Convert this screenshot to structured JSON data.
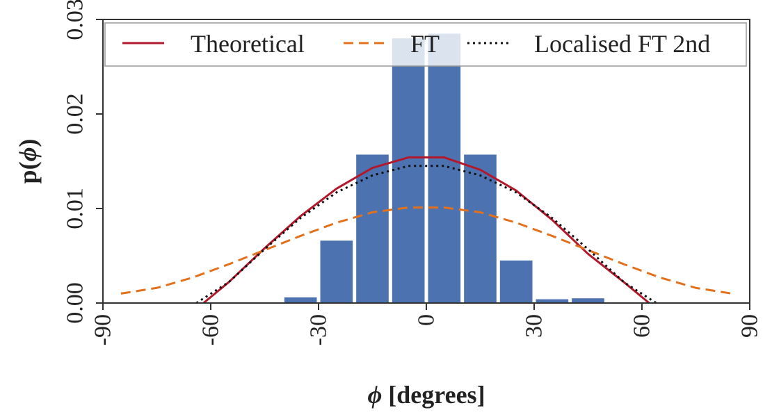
{
  "chart_data": {
    "type": "bar",
    "xlabel_symbol": "ϕ",
    "xlabel_text": " [degrees]",
    "ylabel_prefix": "p(",
    "ylabel_symbol": "ϕ",
    "ylabel_suffix": ")",
    "xlim": [
      -90,
      90
    ],
    "ylim": [
      0,
      0.03
    ],
    "xticks": [
      -90,
      -60,
      -30,
      0,
      30,
      60,
      90
    ],
    "xtick_labels": [
      "-90",
      "-60",
      "-30",
      "0",
      "30",
      "60",
      "90"
    ],
    "yticks": [
      0,
      0.01,
      0.02,
      0.03
    ],
    "ytick_labels": [
      "0.00",
      "0.01",
      "0.02",
      "0.03"
    ],
    "grid": false,
    "legend_position": "top",
    "bars": {
      "bin_width": 10,
      "centers": [
        -35,
        -25,
        -15,
        -5,
        5,
        15,
        25,
        35,
        45
      ],
      "values": [
        0.0006,
        0.0066,
        0.0157,
        0.028,
        0.0285,
        0.0157,
        0.0045,
        0.0004,
        0.0005
      ],
      "color": "#4c72b0"
    },
    "series": [
      {
        "name": "Theoretical",
        "style": "solid",
        "color": "#b2182b",
        "x": [
          -62,
          -55,
          -45,
          -35,
          -25,
          -15,
          -5,
          5,
          15,
          25,
          35,
          45,
          55,
          62
        ],
        "y": [
          0.0,
          0.0022,
          0.0058,
          0.0092,
          0.0121,
          0.0143,
          0.0154,
          0.0154,
          0.0141,
          0.0119,
          0.0088,
          0.0052,
          0.0022,
          0.0
        ]
      },
      {
        "name": "FT",
        "style": "dashed",
        "color": "#e2711d",
        "x": [
          -85,
          -75,
          -65,
          -55,
          -45,
          -35,
          -25,
          -15,
          -5,
          5,
          15,
          25,
          35,
          45,
          55,
          65,
          75,
          85
        ],
        "y": [
          0.001,
          0.0016,
          0.0027,
          0.0041,
          0.0056,
          0.0071,
          0.0085,
          0.0096,
          0.0101,
          0.0101,
          0.0096,
          0.0085,
          0.0071,
          0.0056,
          0.0041,
          0.0027,
          0.0016,
          0.001
        ]
      },
      {
        "name": "Localised FT 2nd",
        "style": "dotted",
        "color": "#111111",
        "x": [
          -64,
          -55,
          -45,
          -35,
          -25,
          -15,
          -5,
          5,
          15,
          25,
          35,
          45,
          55,
          64
        ],
        "y": [
          0.0,
          0.0022,
          0.0057,
          0.009,
          0.0117,
          0.0135,
          0.0145,
          0.0145,
          0.0135,
          0.0117,
          0.009,
          0.0057,
          0.0022,
          0.0
        ]
      }
    ]
  }
}
